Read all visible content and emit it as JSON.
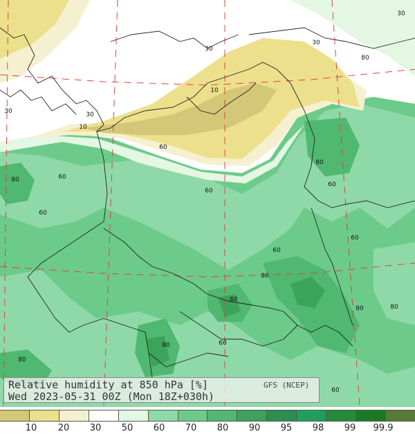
{
  "title": {
    "line1": "Relative humidity at 850 hPa [%]",
    "line2": "Wed 2023-05-31 00Z (Mon 18Z+030h)",
    "model": "GFS (NCEP)"
  },
  "colorbar": {
    "colors": [
      "#d4c878",
      "#ece08c",
      "#f5f1d0",
      "#ffffff",
      "#e3f7e3",
      "#8fd9a8",
      "#6ccb8a",
      "#50b870",
      "#3ba35a",
      "#2a9050",
      "#1f9e60",
      "#238c3a",
      "#1a7a24",
      "#567a34"
    ],
    "tick_labels": [
      "10",
      "20",
      "30",
      "50",
      "60",
      "70",
      "80",
      "90",
      "95",
      "98",
      "99",
      "99.9"
    ]
  },
  "contour_labels": [
    {
      "text": "30"
    },
    {
      "text": "30"
    },
    {
      "text": "30"
    },
    {
      "text": "10"
    },
    {
      "text": "30"
    },
    {
      "text": "10"
    },
    {
      "text": "30"
    },
    {
      "text": "60"
    },
    {
      "text": "60"
    },
    {
      "text": "80"
    },
    {
      "text": "60"
    },
    {
      "text": "60"
    },
    {
      "text": "80"
    },
    {
      "text": "60"
    },
    {
      "text": "60"
    },
    {
      "text": "60"
    },
    {
      "text": "80"
    },
    {
      "text": "60"
    },
    {
      "text": "80"
    },
    {
      "text": "80"
    },
    {
      "text": "80"
    },
    {
      "text": "60"
    },
    {
      "text": "80"
    },
    {
      "text": "60"
    },
    {
      "text": "80"
    },
    {
      "text": "60"
    },
    {
      "text": "60"
    }
  ]
}
